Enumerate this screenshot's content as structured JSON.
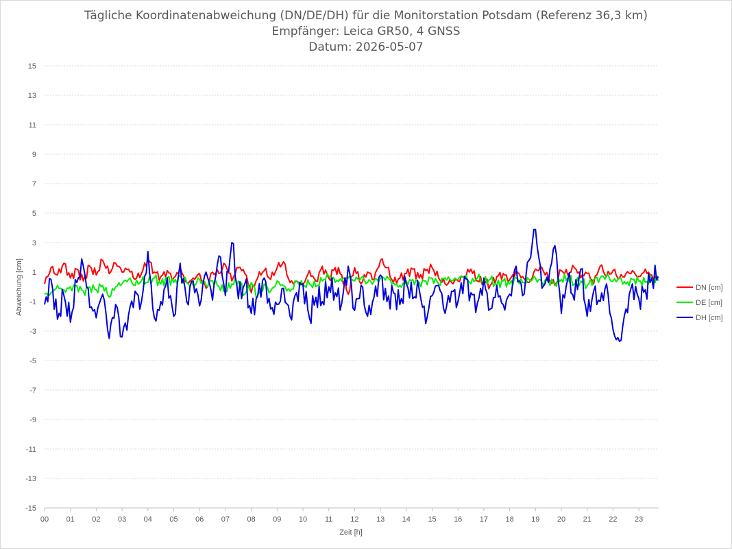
{
  "chart_data": {
    "type": "line",
    "title_lines": [
      "Tägliche Koordinatenabweichung (DN/DE/DH) für die Monitorstation Potsdam (Referenz 36,3 km)",
      "Empfänger: Leica GR50, 4 GNSS",
      "Datum: 2026-05-07"
    ],
    "xlabel": "Zeit [h]",
    "ylabel": "Abweichung [cm]",
    "ylim": [
      -15,
      15
    ],
    "yticks": [
      "15",
      "13",
      "11",
      "9",
      "7",
      "5",
      "3",
      "1",
      "-1",
      "-3",
      "-5",
      "-7",
      "-9",
      "-11",
      "-13",
      "-15"
    ],
    "xticks": [
      "00",
      "01",
      "02",
      "03",
      "04",
      "05",
      "06",
      "07",
      "08",
      "09",
      "10",
      "11",
      "12",
      "13",
      "14",
      "15",
      "16",
      "17",
      "18",
      "19",
      "20",
      "21",
      "22",
      "23"
    ],
    "xlim": [
      0,
      23.8
    ],
    "grid": true,
    "legend_position": "right",
    "series": [
      {
        "name": "DN [cm]",
        "color": "#ff0000",
        "x": [
          0,
          0.25,
          0.5,
          0.75,
          1,
          1.25,
          1.5,
          1.75,
          2,
          2.25,
          2.5,
          2.75,
          3,
          3.25,
          3.5,
          3.75,
          4,
          4.25,
          4.5,
          4.75,
          5,
          5.25,
          5.5,
          5.75,
          6,
          6.25,
          6.5,
          6.75,
          7,
          7.25,
          7.5,
          7.75,
          8,
          8.25,
          8.5,
          8.75,
          9,
          9.25,
          9.5,
          9.75,
          10,
          10.25,
          10.5,
          10.75,
          11,
          11.25,
          11.5,
          11.75,
          12,
          12.25,
          12.5,
          12.75,
          13,
          13.25,
          13.5,
          13.75,
          14,
          14.25,
          14.5,
          14.75,
          15,
          15.25,
          15.5,
          15.75,
          16,
          16.25,
          16.5,
          16.75,
          17,
          17.25,
          17.5,
          17.75,
          18,
          18.25,
          18.5,
          18.75,
          19,
          19.25,
          19.5,
          19.75,
          20,
          20.25,
          20.5,
          20.75,
          21,
          21.25,
          21.5,
          21.75,
          22,
          22.25,
          22.5,
          22.75,
          23,
          23.25,
          23.5,
          23.75
        ],
        "values": [
          0.2,
          1.3,
          0.8,
          1.6,
          0.6,
          1.2,
          0.4,
          1.4,
          0.8,
          1.8,
          0.9,
          1.6,
          1.0,
          1.2,
          0.5,
          0.9,
          1.9,
          1.0,
          0.7,
          1.1,
          0.6,
          1.3,
          0.3,
          0.6,
          0.9,
          -0.1,
          1.0,
          0.9,
          1.5,
          0.4,
          1.3,
          0.9,
          -0.4,
          0.6,
          1.1,
          0.5,
          1.3,
          1.7,
          0.3,
          0.4,
          0.2,
          1.1,
          0.4,
          1.4,
          0.6,
          1.3,
          0.8,
          -0.5,
          1.3,
          0.2,
          1.0,
          0.5,
          1.8,
          1.3,
          0.3,
          0.6,
          0.9,
          1.2,
          0.6,
          1.1,
          1.3,
          0.6,
          0.2,
          0.3,
          0.4,
          0.7,
          1.2,
          0.4,
          0.4,
          0.1,
          0.7,
          0.9,
          0.5,
          1.1,
          0.7,
          0.3,
          1.2,
          1.3,
          0.6,
          0.1,
          1.1,
          0.8,
          1.3,
          0.6,
          0.9,
          0.2,
          1.4,
          0.7,
          1.1,
          0.6,
          0.9,
          1.1,
          0.7,
          1.2,
          0.8,
          0.5
        ],
        "label": "DN [cm]"
      },
      {
        "name": "DE [cm]",
        "color": "#00ee00",
        "x": [
          0,
          0.25,
          0.5,
          0.75,
          1,
          1.25,
          1.5,
          1.75,
          2,
          2.25,
          2.5,
          2.75,
          3,
          3.25,
          3.5,
          3.75,
          4,
          4.25,
          4.5,
          4.75,
          5,
          5.25,
          5.5,
          5.75,
          6,
          6.25,
          6.5,
          6.75,
          7,
          7.25,
          7.5,
          7.75,
          8,
          8.25,
          8.5,
          8.75,
          9,
          9.25,
          9.5,
          9.75,
          10,
          10.25,
          10.5,
          10.75,
          11,
          11.25,
          11.5,
          11.75,
          12,
          12.25,
          12.5,
          12.75,
          13,
          13.25,
          13.5,
          13.75,
          14,
          14.25,
          14.5,
          14.75,
          15,
          15.25,
          15.5,
          15.75,
          16,
          16.25,
          16.5,
          16.75,
          17,
          17.25,
          17.5,
          17.75,
          18,
          18.25,
          18.5,
          18.75,
          19,
          19.25,
          19.5,
          19.75,
          20,
          20.25,
          20.5,
          20.75,
          21,
          21.25,
          21.5,
          21.75,
          22,
          22.25,
          22.5,
          22.75,
          23,
          23.25,
          23.5,
          23.75
        ],
        "values": [
          -0.5,
          -0.4,
          0.1,
          -0.2,
          0.0,
          0.1,
          -0.3,
          0.0,
          -0.2,
          0.1,
          -0.7,
          0.0,
          0.2,
          0.5,
          0.1,
          0.4,
          0.3,
          0.6,
          0.2,
          0.6,
          0.3,
          0.7,
          0.3,
          0.1,
          0.5,
          0.1,
          0.4,
          0.0,
          -0.3,
          0.2,
          0.4,
          -0.5,
          0.3,
          -0.6,
          0.2,
          -0.3,
          0.4,
          0.1,
          -0.3,
          0.4,
          0.1,
          0.2,
          0.0,
          0.4,
          0.7,
          0.3,
          0.4,
          0.6,
          0.4,
          0.6,
          0.3,
          0.4,
          0.6,
          0.7,
          0.3,
          0.1,
          0.4,
          0.5,
          0.3,
          0.4,
          0.6,
          0.2,
          0.6,
          0.4,
          0.5,
          0.7,
          0.2,
          0.6,
          0.3,
          0.5,
          0.1,
          0.4,
          0.2,
          0.6,
          0.3,
          0.5,
          0.6,
          0.3,
          0.4,
          0.2,
          0.5,
          0.6,
          0.2,
          0.4,
          0.1,
          0.5,
          0.6,
          0.8,
          0.4,
          0.6,
          0.2,
          0.5,
          0.4,
          0.3,
          0.5,
          0.4
        ],
        "label": "DE [cm]"
      },
      {
        "name": "DH [cm]",
        "color": "#0000dd",
        "x": [
          0,
          0.25,
          0.5,
          0.75,
          1,
          1.25,
          1.5,
          1.75,
          2,
          2.25,
          2.5,
          2.75,
          3,
          3.25,
          3.5,
          3.75,
          4,
          4.25,
          4.5,
          4.75,
          5,
          5.25,
          5.5,
          5.75,
          6,
          6.25,
          6.5,
          6.75,
          7,
          7.25,
          7.5,
          7.75,
          8,
          8.25,
          8.5,
          8.75,
          9,
          9.25,
          9.5,
          9.75,
          10,
          10.25,
          10.5,
          10.75,
          11,
          11.25,
          11.5,
          11.75,
          12,
          12.25,
          12.5,
          12.75,
          13,
          13.25,
          13.5,
          13.75,
          14,
          14.25,
          14.5,
          14.75,
          15,
          15.25,
          15.5,
          15.75,
          16,
          16.25,
          16.5,
          16.75,
          17,
          17.25,
          17.5,
          17.75,
          18,
          18.25,
          18.5,
          18.75,
          19,
          19.25,
          19.5,
          19.75,
          20,
          20.25,
          20.5,
          20.75,
          21,
          21.25,
          21.5,
          21.75,
          22,
          22.25,
          22.5,
          22.75,
          23,
          23.25,
          23.5,
          23.75
        ],
        "values": [
          -1.2,
          0.5,
          -2.2,
          -0.6,
          -2.4,
          0.3,
          1.4,
          -1.4,
          -2.1,
          -0.5,
          -3.5,
          -1.2,
          -3.4,
          -1.9,
          -0.3,
          -1.0,
          2.4,
          -2.1,
          -1.0,
          0.6,
          -2.0,
          1.6,
          -1.0,
          0.4,
          -1.3,
          1.0,
          -0.9,
          2.1,
          -0.6,
          3.0,
          -0.8,
          0.2,
          -1.8,
          -0.6,
          0.6,
          -1.5,
          -1.2,
          -0.1,
          -2.0,
          -0.4,
          0.2,
          -2.1,
          -0.7,
          -1.0,
          0.0,
          -0.4,
          -1.1,
          1.4,
          -1.6,
          0.1,
          -2.0,
          -0.7,
          0.8,
          -1.0,
          -0.4,
          -1.2,
          0.2,
          -0.8,
          -0.2,
          -2.5,
          -0.6,
          0.1,
          -1.8,
          -0.3,
          -1.0,
          0.7,
          -0.4,
          -1.1,
          0.6,
          -1.5,
          0.1,
          -1.2,
          -0.5,
          1.4,
          -0.6,
          1.8,
          3.9,
          -0.1,
          0.3,
          2.8,
          -1.8,
          0.5,
          -0.9,
          1.2,
          -2.0,
          -0.3,
          -1.0,
          0.2,
          -2.9,
          -3.7,
          -1.5,
          0.2,
          -0.8,
          -0.2,
          0.6,
          0.7
        ],
        "label": "DH [cm]"
      }
    ]
  }
}
